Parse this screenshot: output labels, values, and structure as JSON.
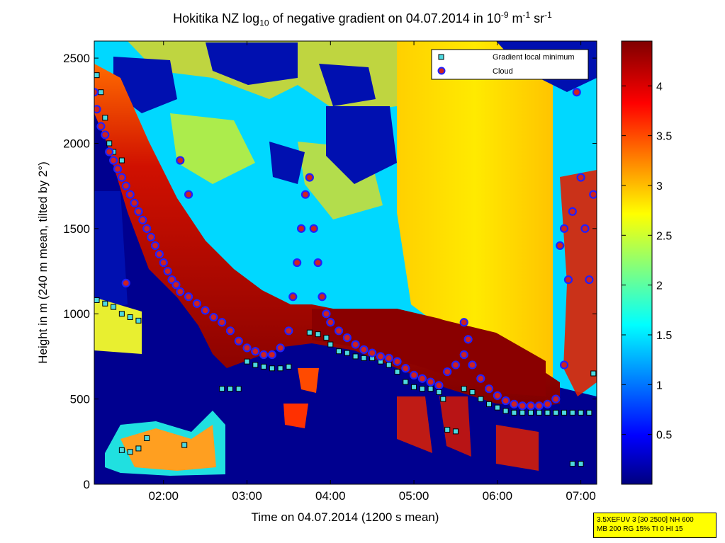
{
  "chart_data": {
    "type": "heatmap",
    "title": {
      "prefix": "Hokitika NZ log",
      "sub": "10",
      "mid": " of negative gradient on 04.07.2014 in 10",
      "sup1": "-9",
      "unit1": " m",
      "sup2": "-1",
      "unit2": " sr",
      "sup3": "-1"
    },
    "xlabel": "Time on 04.07.2014 (1200 s mean)",
    "ylabel": "Height in m (240 m mean, tilted by 2°)",
    "x_ticks": [
      "02:00",
      "03:00",
      "04:00",
      "05:00",
      "06:00",
      "07:00"
    ],
    "x_range_hours": [
      1.17,
      7.19
    ],
    "y_ticks": [
      0,
      500,
      1000,
      1500,
      2000,
      2500
    ],
    "ylim": [
      0,
      2600
    ],
    "colorbar": {
      "ticks": [
        "0.5",
        "1",
        "1.5",
        "2",
        "2.5",
        "3",
        "3.5",
        "4"
      ],
      "range": [
        0,
        4.45
      ],
      "colormap": "jet"
    },
    "legend": {
      "placement": "top-right",
      "entries": [
        {
          "label": "Gradient local minimum",
          "marker": "square",
          "color": "#4dd9e0"
        },
        {
          "label": "Cloud",
          "marker": "circle",
          "color": "#cc2222"
        }
      ]
    },
    "series": [
      {
        "name": "Gradient local minimum",
        "points": [
          [
            1.2,
            1080
          ],
          [
            1.3,
            1060
          ],
          [
            1.4,
            1040
          ],
          [
            1.5,
            1000
          ],
          [
            1.6,
            980
          ],
          [
            1.7,
            960
          ],
          [
            1.2,
            2400
          ],
          [
            1.25,
            2300
          ],
          [
            1.3,
            2150
          ],
          [
            1.35,
            2000
          ],
          [
            1.4,
            1950
          ],
          [
            1.5,
            1900
          ],
          [
            1.5,
            200
          ],
          [
            1.6,
            190
          ],
          [
            1.7,
            210
          ],
          [
            1.8,
            270
          ],
          [
            2.25,
            230
          ],
          [
            2.7,
            560
          ],
          [
            2.8,
            560
          ],
          [
            2.9,
            560
          ],
          [
            3.0,
            720
          ],
          [
            3.1,
            700
          ],
          [
            3.2,
            690
          ],
          [
            3.3,
            680
          ],
          [
            3.4,
            680
          ],
          [
            3.5,
            690
          ],
          [
            3.75,
            890
          ],
          [
            3.85,
            880
          ],
          [
            3.95,
            860
          ],
          [
            4.0,
            820
          ],
          [
            4.1,
            780
          ],
          [
            4.2,
            770
          ],
          [
            4.3,
            750
          ],
          [
            4.4,
            740
          ],
          [
            4.5,
            740
          ],
          [
            4.6,
            720
          ],
          [
            4.7,
            700
          ],
          [
            4.8,
            660
          ],
          [
            4.9,
            600
          ],
          [
            5.0,
            570
          ],
          [
            5.1,
            560
          ],
          [
            5.2,
            560
          ],
          [
            5.3,
            540
          ],
          [
            5.35,
            500
          ],
          [
            5.4,
            320
          ],
          [
            5.5,
            310
          ],
          [
            5.6,
            560
          ],
          [
            5.7,
            540
          ],
          [
            5.8,
            500
          ],
          [
            5.9,
            470
          ],
          [
            6.0,
            450
          ],
          [
            6.1,
            430
          ],
          [
            6.2,
            420
          ],
          [
            6.3,
            420
          ],
          [
            6.4,
            420
          ],
          [
            6.5,
            420
          ],
          [
            6.6,
            420
          ],
          [
            6.7,
            420
          ],
          [
            6.8,
            420
          ],
          [
            6.9,
            420
          ],
          [
            7.0,
            420
          ],
          [
            7.1,
            420
          ],
          [
            6.9,
            120
          ],
          [
            7.0,
            120
          ],
          [
            7.15,
            650
          ]
        ]
      },
      {
        "name": "Cloud",
        "points": [
          [
            1.17,
            2300
          ],
          [
            1.2,
            2200
          ],
          [
            1.25,
            2100
          ],
          [
            1.3,
            2050
          ],
          [
            1.35,
            1950
          ],
          [
            1.4,
            1900
          ],
          [
            1.45,
            1850
          ],
          [
            1.5,
            1800
          ],
          [
            1.55,
            1750
          ],
          [
            1.6,
            1700
          ],
          [
            1.65,
            1650
          ],
          [
            1.7,
            1600
          ],
          [
            1.75,
            1550
          ],
          [
            1.8,
            1500
          ],
          [
            1.85,
            1450
          ],
          [
            1.9,
            1400
          ],
          [
            1.95,
            1350
          ],
          [
            2.0,
            1300
          ],
          [
            2.05,
            1250
          ],
          [
            2.1,
            1200
          ],
          [
            2.15,
            1170
          ],
          [
            2.2,
            1130
          ],
          [
            2.3,
            1100
          ],
          [
            2.4,
            1060
          ],
          [
            2.5,
            1020
          ],
          [
            2.6,
            980
          ],
          [
            2.7,
            950
          ],
          [
            2.8,
            900
          ],
          [
            2.9,
            840
          ],
          [
            3.0,
            800
          ],
          [
            3.1,
            780
          ],
          [
            3.2,
            760
          ],
          [
            3.3,
            760
          ],
          [
            3.4,
            800
          ],
          [
            3.5,
            900
          ],
          [
            3.55,
            1100
          ],
          [
            3.6,
            1300
          ],
          [
            3.65,
            1500
          ],
          [
            3.7,
            1700
          ],
          [
            3.75,
            1800
          ],
          [
            3.8,
            1500
          ],
          [
            3.85,
            1300
          ],
          [
            3.9,
            1100
          ],
          [
            3.95,
            1000
          ],
          [
            4.0,
            950
          ],
          [
            4.1,
            900
          ],
          [
            4.2,
            860
          ],
          [
            4.3,
            820
          ],
          [
            4.4,
            790
          ],
          [
            4.5,
            770
          ],
          [
            4.6,
            750
          ],
          [
            4.7,
            740
          ],
          [
            4.8,
            720
          ],
          [
            4.9,
            680
          ],
          [
            5.0,
            640
          ],
          [
            5.1,
            620
          ],
          [
            5.2,
            600
          ],
          [
            5.3,
            580
          ],
          [
            5.4,
            660
          ],
          [
            5.5,
            700
          ],
          [
            5.6,
            760
          ],
          [
            5.7,
            700
          ],
          [
            5.8,
            620
          ],
          [
            5.9,
            560
          ],
          [
            6.0,
            520
          ],
          [
            6.1,
            490
          ],
          [
            6.2,
            470
          ],
          [
            6.3,
            460
          ],
          [
            6.4,
            460
          ],
          [
            6.5,
            460
          ],
          [
            6.6,
            470
          ],
          [
            6.7,
            500
          ],
          [
            6.75,
            1400
          ],
          [
            6.8,
            1500
          ],
          [
            6.85,
            1200
          ],
          [
            6.9,
            1600
          ],
          [
            6.95,
            2300
          ],
          [
            7.0,
            1800
          ],
          [
            7.05,
            1500
          ],
          [
            7.1,
            1200
          ],
          [
            7.15,
            1700
          ],
          [
            1.55,
            1180
          ],
          [
            5.6,
            950
          ],
          [
            5.65,
            850
          ],
          [
            6.8,
            700
          ],
          [
            2.3,
            1700
          ],
          [
            2.2,
            1900
          ]
        ]
      }
    ]
  },
  "infobox": {
    "line1": "3.5XEFUV 3 [30 2500] NH 600",
    "line2": "MB 200 RG 15% TI 0 HI 15"
  },
  "colors": {
    "background_low": "#00008f",
    "local_min_fill": "#4dd9e0",
    "cloud_fill": "#cc2222",
    "cloud_edge": "#2020ff",
    "infobox_bg": "#ffff00"
  }
}
